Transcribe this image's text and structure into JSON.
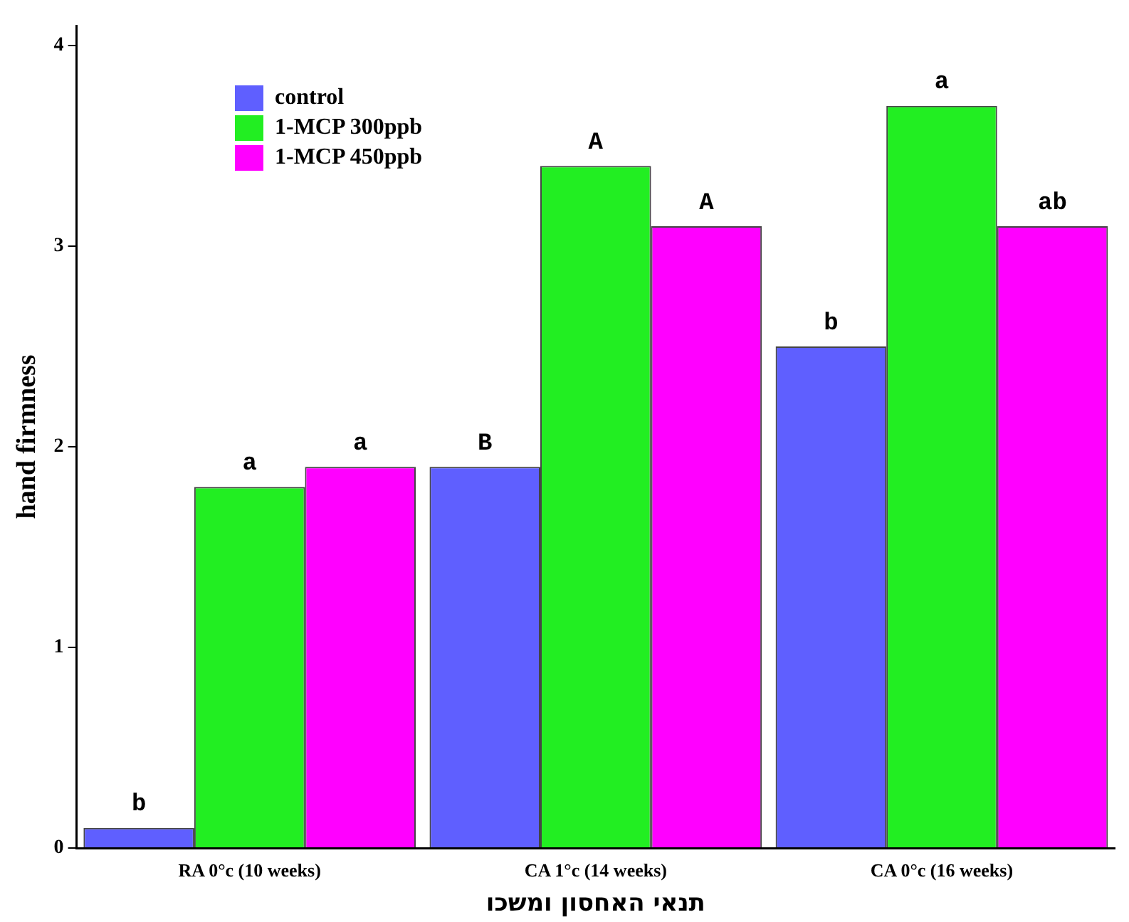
{
  "chart_data": {
    "type": "bar",
    "xlabel": "תנאי האחסון ומשכו",
    "ylabel": "hand firmness",
    "categories": [
      "RA 0°c (10 weeks)",
      "CA 1°c (14 weeks)",
      "CA 0°c (16 weeks)"
    ],
    "series": [
      {
        "name": "control",
        "color": "#5f5fff",
        "values": [
          0.1,
          1.9,
          2.5
        ],
        "value_labels": [
          "b",
          "B",
          "b"
        ]
      },
      {
        "name": "1-MCP 300ppb",
        "color": "#22ee22",
        "values": [
          1.8,
          3.4,
          3.7
        ],
        "value_labels": [
          "a",
          "A",
          "a"
        ]
      },
      {
        "name": "1-MCP 450ppb",
        "color": "#ff00ff",
        "values": [
          1.9,
          3.1,
          3.1
        ],
        "value_labels": [
          "a",
          "A",
          "ab"
        ]
      }
    ],
    "ylim": [
      0,
      4.1
    ],
    "yticks": [
      0,
      1,
      2,
      3,
      4
    ],
    "grid": false,
    "legend": "top left"
  }
}
